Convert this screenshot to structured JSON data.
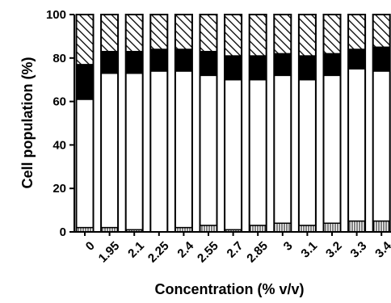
{
  "chart_data": {
    "type": "bar",
    "stacked": true,
    "title": "",
    "xlabel": "Concentration (% v/v)",
    "ylabel": "Cell population (%)",
    "ylim": [
      0,
      100
    ],
    "yticks": [
      "0",
      "20",
      "40",
      "60",
      "80",
      "100"
    ],
    "grid": false,
    "categories": [
      "0",
      "1.95",
      "2.1",
      "2.25",
      "2.4",
      "2.55",
      "2.7",
      "2.85",
      "3",
      "3.1",
      "3.2",
      "3.3",
      "3.4"
    ],
    "series": [
      {
        "pattern": "vertical-lines",
        "color": "#000000",
        "values": [
          2,
          2,
          1,
          0,
          2,
          3,
          1,
          3,
          4,
          3,
          4,
          5,
          5
        ]
      },
      {
        "pattern": "solid-white",
        "color": "#ffffff",
        "values": [
          59,
          71,
          72,
          74,
          72,
          69,
          69,
          67,
          68,
          67,
          68,
          70,
          69
        ]
      },
      {
        "pattern": "solid-black",
        "color": "#000000",
        "values": [
          16,
          10,
          10,
          10,
          10,
          11,
          11,
          11,
          10,
          11,
          10,
          9,
          11
        ]
      },
      {
        "pattern": "diagonal-hatch",
        "color": "#000000",
        "values": [
          23,
          17,
          17,
          16,
          16,
          17,
          19,
          19,
          18,
          19,
          18,
          16,
          15
        ]
      }
    ]
  }
}
